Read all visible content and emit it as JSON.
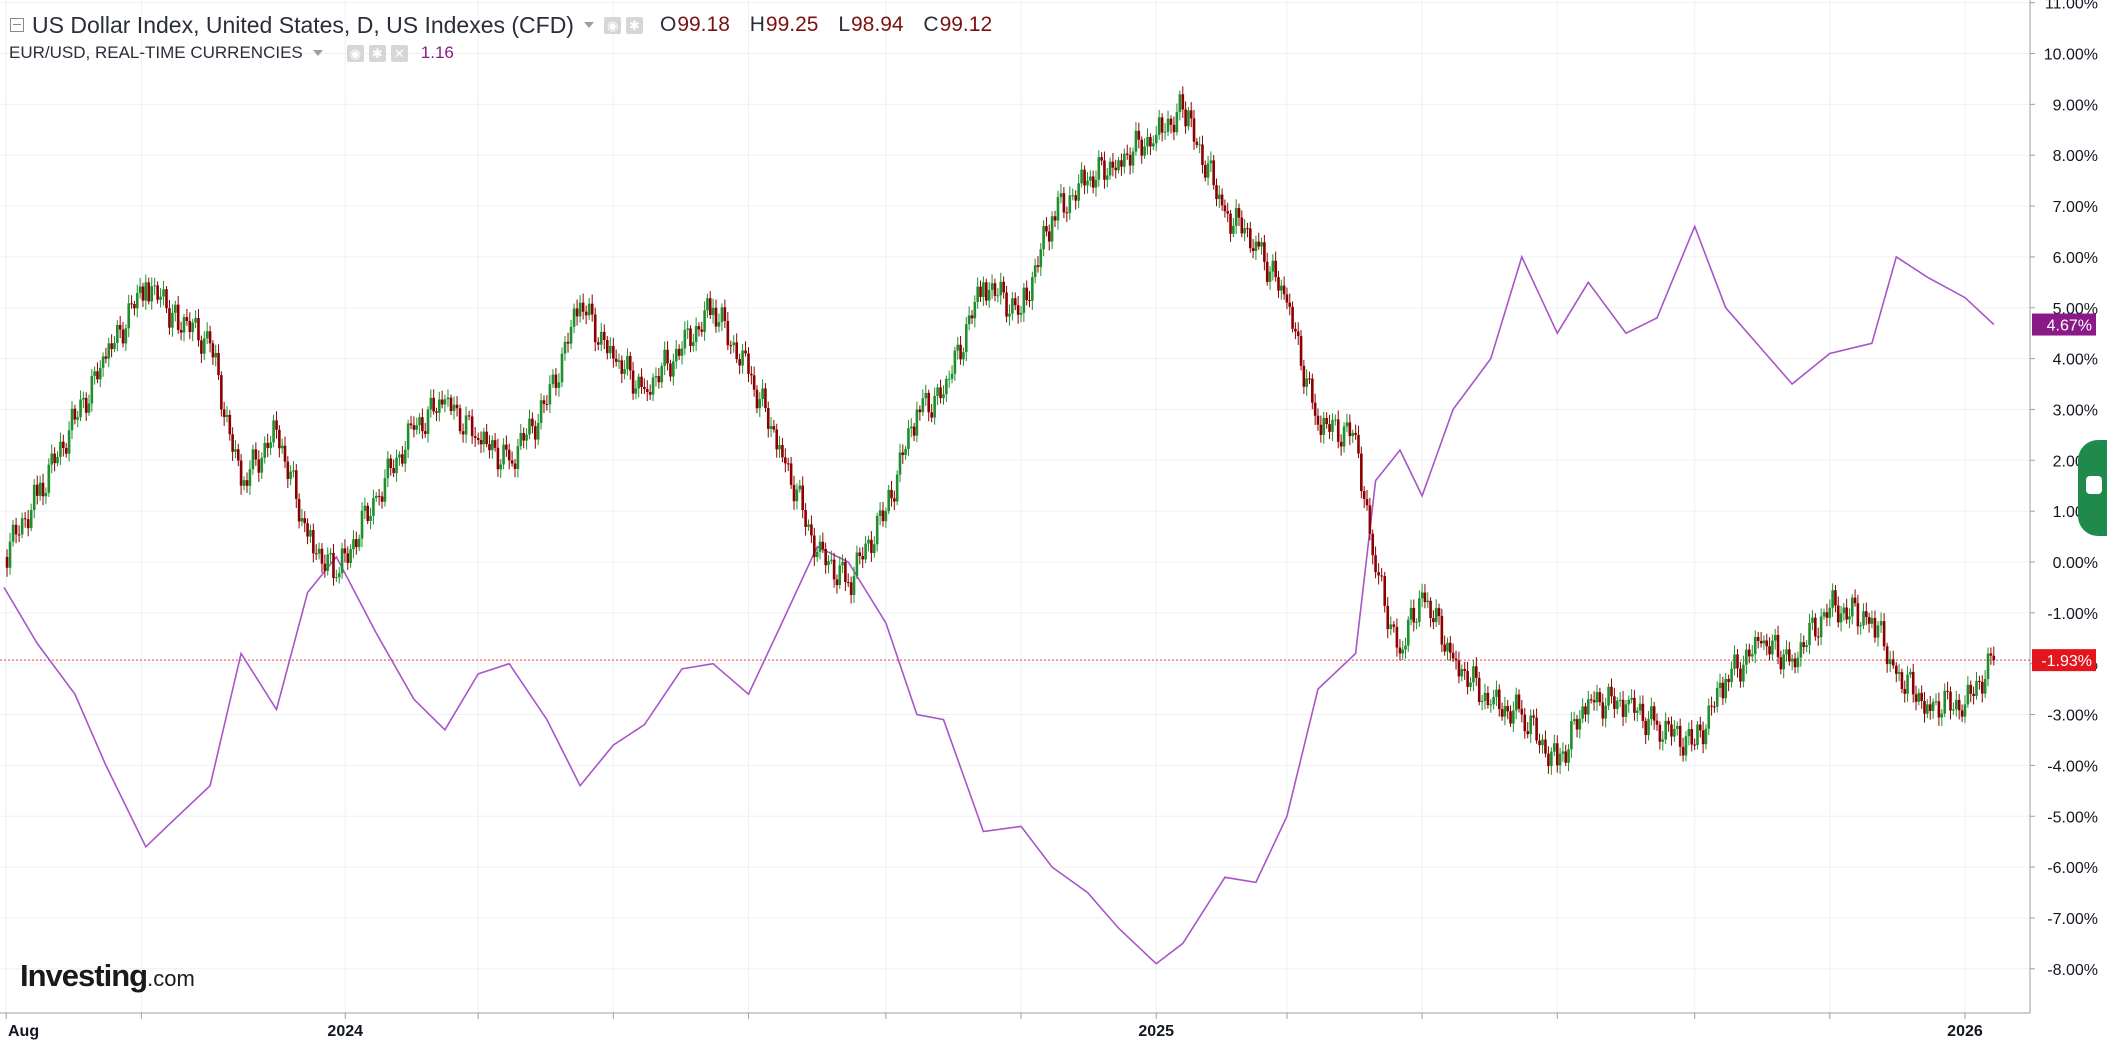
{
  "legend": {
    "main_title": "US Dollar Index, United States, D, US Indexes (CFD)",
    "ohlc": [
      {
        "key": "O",
        "value": "99.18"
      },
      {
        "key": "H",
        "value": "99.25"
      },
      {
        "key": "L",
        "value": "98.94"
      },
      {
        "key": "C",
        "value": "99.12"
      }
    ],
    "secondary_title": "EUR/USD, REAL-TIME CURRENCIES",
    "secondary_value": "1.16",
    "icons": [
      "collapse-icon",
      "eye-icon",
      "settings-icon",
      "close-icon"
    ]
  },
  "logo": {
    "brand": "Investing",
    "suffix": ".com"
  },
  "colors": {
    "up_candle": "#1f8f2d",
    "down_candle": "#8b0000",
    "eur_line": "#a855c7",
    "eur_badge": "#8b1a89",
    "dxy_badge": "#e2161c",
    "price_line": "#f23645",
    "grid": "#eef0f3",
    "axis_text": "#131722",
    "side_tab": "#1f8a4c"
  },
  "chart_data": {
    "type": "line",
    "title": "US Dollar Index, United States, D, US Indexes (CFD)",
    "xlabel": "",
    "ylabel": "",
    "y_unit": "percent change",
    "ylim": [
      -8.8,
      11.0
    ],
    "y_ticks": [
      "11.00%",
      "10.00%",
      "9.00%",
      "8.00%",
      "7.00%",
      "6.00%",
      "5.00%",
      "4.00%",
      "3.00%",
      "2.00%",
      "1.00%",
      "0.00%",
      "-1.00%",
      "-2.00%",
      "-3.00%",
      "-4.00%",
      "-5.00%",
      "-6.00%",
      "-7.00%",
      "-8.00%"
    ],
    "x_tick_labels": [
      {
        "label": "Aug",
        "date": "2023-08-01"
      },
      {
        "label": "",
        "date": "2023-10-01"
      },
      {
        "label": "2024",
        "date": "2024-01-01"
      },
      {
        "label": "",
        "date": "2024-03-01"
      },
      {
        "label": "",
        "date": "2024-05-01"
      },
      {
        "label": "",
        "date": "2024-07-01"
      },
      {
        "label": "",
        "date": "2024-09-01"
      },
      {
        "label": "",
        "date": "2024-11-01"
      },
      {
        "label": "2025",
        "date": "2025-01-01"
      },
      {
        "label": "",
        "date": "2025-03-01"
      },
      {
        "label": "",
        "date": "2025-05-01"
      },
      {
        "label": "",
        "date": "2025-07-01"
      },
      {
        "label": "",
        "date": "2025-09-01"
      },
      {
        "label": "",
        "date": "2025-11-01"
      },
      {
        "label": "2026",
        "date": "2026-01-01"
      }
    ],
    "x_range": [
      "2023-07-31",
      "2026-01-15"
    ],
    "grid": true,
    "series": [
      {
        "name": "US Dollar Index",
        "style": "candlestick",
        "last_label": "-1.93%",
        "last_value": -1.93,
        "x": [
          "2023-07-31",
          "2023-08-15",
          "2023-09-01",
          "2023-09-15",
          "2023-10-03",
          "2023-10-15",
          "2023-11-01",
          "2023-11-15",
          "2023-12-01",
          "2023-12-15",
          "2023-12-28",
          "2024-01-15",
          "2024-02-01",
          "2024-02-15",
          "2024-03-01",
          "2024-03-15",
          "2024-04-01",
          "2024-04-16",
          "2024-05-01",
          "2024-05-15",
          "2024-06-01",
          "2024-06-15",
          "2024-07-01",
          "2024-07-15",
          "2024-08-01",
          "2024-08-15",
          "2024-09-01",
          "2024-09-15",
          "2024-09-27",
          "2024-10-15",
          "2024-11-01",
          "2024-11-15",
          "2024-12-01",
          "2024-12-15",
          "2025-01-01",
          "2025-01-13",
          "2025-02-01",
          "2025-02-15",
          "2025-03-01",
          "2025-03-15",
          "2025-04-01",
          "2025-04-10",
          "2025-04-21",
          "2025-05-01",
          "2025-05-15",
          "2025-06-01",
          "2025-06-15",
          "2025-07-01",
          "2025-07-15",
          "2025-08-01",
          "2025-08-15",
          "2025-09-01",
          "2025-09-15",
          "2025-10-01",
          "2025-10-15",
          "2025-11-01",
          "2025-11-20",
          "2025-12-01",
          "2025-12-15",
          "2026-01-01",
          "2026-01-14"
        ],
        "values": [
          0.1,
          1.3,
          2.8,
          4.0,
          5.5,
          4.9,
          4.3,
          1.5,
          2.6,
          0.5,
          -0.3,
          1.3,
          2.6,
          3.2,
          2.4,
          2.0,
          3.1,
          5.1,
          4.0,
          3.4,
          4.2,
          5.0,
          3.7,
          2.3,
          0.2,
          -0.4,
          1.0,
          3.0,
          3.3,
          5.5,
          4.9,
          6.8,
          7.5,
          7.9,
          8.4,
          8.9,
          6.9,
          6.3,
          5.1,
          2.7,
          2.5,
          -0.2,
          -1.8,
          -0.6,
          -1.9,
          -2.8,
          -3.0,
          -4.0,
          -2.7,
          -2.8,
          -3.2,
          -3.6,
          -2.3,
          -1.6,
          -1.9,
          -0.9,
          -1.1,
          -2.2,
          -2.8,
          -2.8,
          -1.93
        ]
      },
      {
        "name": "EUR/USD",
        "style": "line",
        "last_label": "4.67%",
        "last_value": 4.67,
        "x": [
          "2023-07-31",
          "2023-08-15",
          "2023-09-01",
          "2023-09-15",
          "2023-10-03",
          "2023-10-15",
          "2023-11-01",
          "2023-11-15",
          "2023-12-01",
          "2023-12-15",
          "2023-12-28",
          "2024-01-15",
          "2024-02-01",
          "2024-02-15",
          "2024-03-01",
          "2024-03-15",
          "2024-04-01",
          "2024-04-16",
          "2024-05-01",
          "2024-05-15",
          "2024-06-01",
          "2024-06-15",
          "2024-07-01",
          "2024-07-15",
          "2024-08-01",
          "2024-08-15",
          "2024-09-01",
          "2024-09-15",
          "2024-09-27",
          "2024-10-15",
          "2024-11-01",
          "2024-11-15",
          "2024-12-01",
          "2024-12-15",
          "2025-01-01",
          "2025-01-13",
          "2025-02-01",
          "2025-02-15",
          "2025-03-01",
          "2025-03-15",
          "2025-04-01",
          "2025-04-10",
          "2025-04-21",
          "2025-05-01",
          "2025-05-15",
          "2025-06-01",
          "2025-06-15",
          "2025-07-01",
          "2025-07-15",
          "2025-08-01",
          "2025-08-15",
          "2025-09-01",
          "2025-09-15",
          "2025-10-01",
          "2025-10-15",
          "2025-11-01",
          "2025-11-20",
          "2025-12-01",
          "2025-12-15",
          "2026-01-01",
          "2026-01-14"
        ],
        "values": [
          -0.5,
          -1.6,
          -2.6,
          -4.0,
          -5.6,
          -5.1,
          -4.4,
          -1.8,
          -2.9,
          -0.6,
          0.1,
          -1.4,
          -2.7,
          -3.3,
          -2.2,
          -2.0,
          -3.1,
          -4.4,
          -3.6,
          -3.2,
          -2.1,
          -2.0,
          -2.6,
          -1.3,
          0.3,
          0.0,
          -1.2,
          -3.0,
          -3.1,
          -5.3,
          -5.2,
          -6.0,
          -6.5,
          -7.2,
          -7.9,
          -7.5,
          -6.2,
          -6.3,
          -5.0,
          -2.5,
          -1.8,
          1.6,
          2.2,
          1.3,
          3.0,
          4.0,
          6.0,
          4.5,
          5.5,
          4.5,
          4.8,
          6.6,
          5.0,
          4.2,
          3.5,
          4.1,
          4.3,
          6.0,
          5.6,
          5.2,
          4.67
        ]
      }
    ]
  }
}
